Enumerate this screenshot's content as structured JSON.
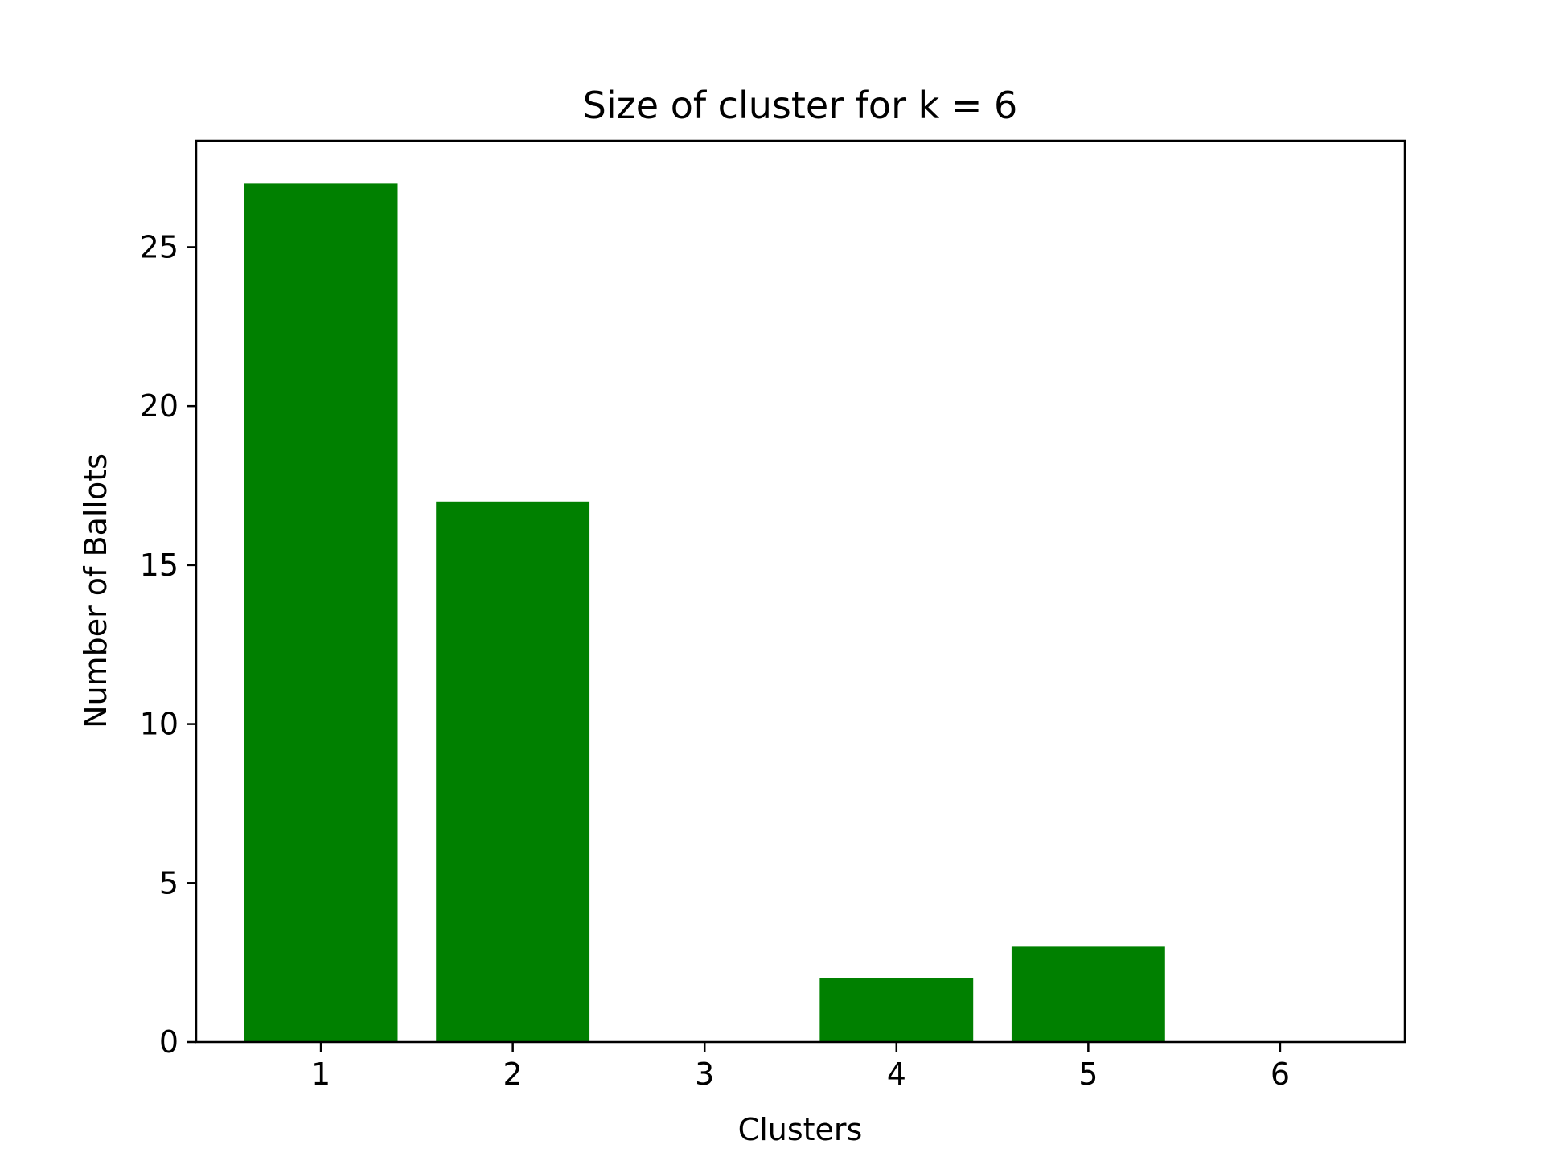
{
  "chart_data": {
    "type": "bar",
    "title": "Size of cluster for k = 6",
    "xlabel": "Clusters",
    "ylabel": "Number of Ballots",
    "categories": [
      "1",
      "2",
      "3",
      "4",
      "5",
      "6"
    ],
    "x": [
      1,
      2,
      3,
      4,
      5,
      6
    ],
    "values": [
      27,
      17,
      0,
      2,
      3,
      0
    ],
    "xlim": [
      0.35,
      6.65
    ],
    "ylim": [
      0,
      28.35
    ],
    "yticks": [
      0,
      5,
      10,
      15,
      20,
      25
    ],
    "bar_width": 0.8,
    "bar_color": "#008000",
    "grid": false,
    "legend": "none"
  }
}
